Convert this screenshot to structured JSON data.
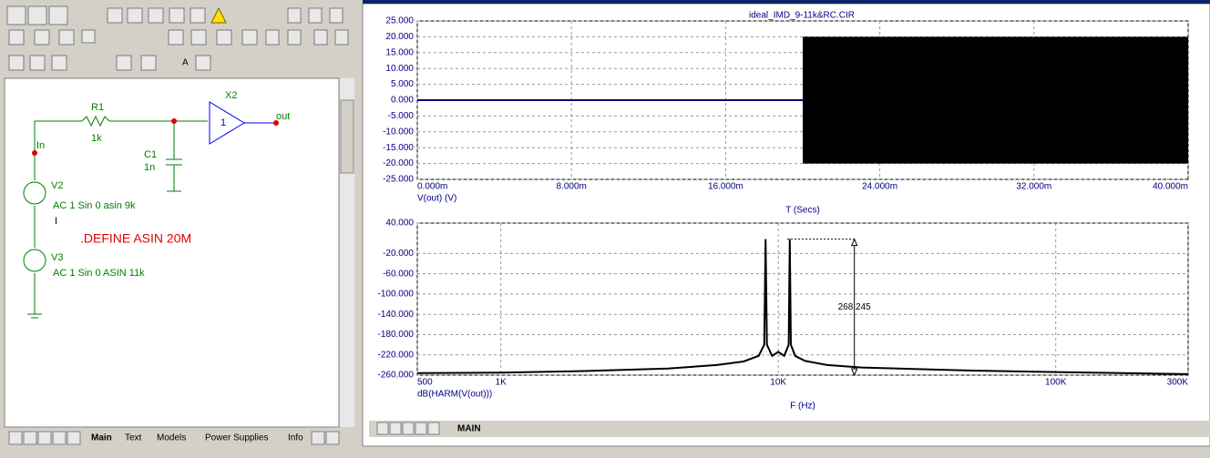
{
  "schematic": {
    "components": [
      {
        "name": "R1",
        "value": "1k"
      },
      {
        "name": "C1",
        "value": "1n"
      },
      {
        "name": "X2",
        "value": "1"
      },
      {
        "name": "V2",
        "value": "AC 1 Sin 0 asin 9k"
      },
      {
        "name": "V3",
        "value": "AC 1 Sin 0 ASIN 11k"
      }
    ],
    "nodes": [
      "In",
      "out"
    ],
    "define": ".DEFINE ASIN 20M",
    "cursor": "I",
    "tabs": [
      "Main",
      "Text",
      "Models",
      "Power Supplies",
      "Info"
    ]
  },
  "analysis": {
    "title": "ideal_IMD_9-11k&RC.CIR",
    "tabs": [
      "MAIN"
    ],
    "plots": [
      {
        "type": "line",
        "ylabel": "V(out) (V)",
        "xlabel": "T (Secs)",
        "xlim": [
          0,
          0.04
        ],
        "ylim": [
          -25,
          25
        ],
        "grid": true,
        "xticks": [
          {
            "value": 0,
            "label": "0.000m"
          },
          {
            "value": 0.008,
            "label": "8.000m"
          },
          {
            "value": 0.016,
            "label": "16.000m"
          },
          {
            "value": 0.024,
            "label": "24.000m"
          },
          {
            "value": 0.032,
            "label": "32.000m"
          },
          {
            "value": 0.04,
            "label": "40.000m"
          }
        ],
        "yticks": [
          {
            "value": 25,
            "label": "25.000"
          },
          {
            "value": 20,
            "label": "20.000"
          },
          {
            "value": 15,
            "label": "15.000"
          },
          {
            "value": 10,
            "label": "10.000"
          },
          {
            "value": 5,
            "label": "5.000"
          },
          {
            "value": 0,
            "label": "0.000"
          },
          {
            "value": -5,
            "label": "-5.000"
          },
          {
            "value": -10,
            "label": "-10.000"
          },
          {
            "value": -15,
            "label": "-15.000"
          },
          {
            "value": -20,
            "label": "-20.000"
          },
          {
            "value": -25,
            "label": "-25.000"
          }
        ],
        "series": [
          {
            "color": "#000080",
            "x": [
              0,
              0.02
            ],
            "values": [
              0,
              0
            ]
          }
        ],
        "envelope": {
          "color": "#000000",
          "x": [
            0.02,
            0.04
          ],
          "upper": [
            20,
            20
          ],
          "lower": [
            -20,
            -20
          ]
        }
      },
      {
        "type": "line",
        "xscale": "log",
        "ylabel": "dB(HARM(V(out)))",
        "xlabel": "F (Hz)",
        "xlim": [
          500,
          300000
        ],
        "ylim": [
          -260,
          40
        ],
        "grid": true,
        "xticks": [
          500,
          {
            "value": 1000,
            "label": "1K"
          },
          {
            "value": 10000,
            "label": "10K"
          },
          {
            "value": 100000,
            "label": "100K"
          },
          {
            "value": 300000,
            "label": "300K"
          }
        ],
        "yticks": [
          {
            "value": 40,
            "label": "40.000"
          },
          {
            "value": -20,
            "label": "-20.000"
          },
          {
            "value": -60,
            "label": "-60.000"
          },
          {
            "value": -100,
            "label": "-100.000"
          },
          {
            "value": -140,
            "label": "-140.000"
          },
          {
            "value": -180,
            "label": "-180.000"
          },
          {
            "value": -220,
            "label": "-220.000"
          },
          {
            "value": -260,
            "label": "-260.000"
          }
        ],
        "series": [
          {
            "color": "#000000",
            "x": [
              500,
              1000,
              2000,
              4000,
              6000,
              7500,
              8500,
              8900,
              9000,
              9100,
              9500,
              10000,
              10500,
              10900,
              11000,
              11100,
              11500,
              12500,
              15000,
              20000,
              50000,
              100000,
              300000
            ],
            "values": [
              -256,
              -255,
              -252,
              -247,
              -240,
              -233,
              -222,
              -200,
              8.245,
              -200,
              -222,
              -214,
              -222,
              -200,
              8.245,
              -200,
              -222,
              -232,
              -240,
              -245,
              -251,
              -254,
              -258
            ]
          }
        ],
        "annotation": {
          "text": "268.245",
          "x": 18800,
          "from": 8.245,
          "to": -260
        }
      }
    ]
  }
}
